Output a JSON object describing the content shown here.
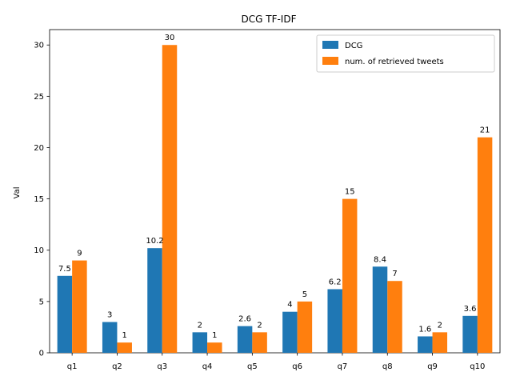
{
  "chart_data": {
    "type": "bar",
    "title": "DCG TF-IDF",
    "xlabel": "",
    "ylabel": "Val",
    "categories": [
      "q1",
      "q2",
      "q3",
      "q4",
      "q5",
      "q6",
      "q7",
      "q8",
      "q9",
      "q10"
    ],
    "series": [
      {
        "name": "DCG",
        "color": "#1f77b4",
        "values": [
          7.5,
          3,
          10.2,
          2,
          2.6,
          4,
          6.2,
          8.4,
          1.6,
          3.6
        ],
        "labels": [
          "7.5",
          "3",
          "10.2",
          "2",
          "2.6",
          "4",
          "6.2",
          "8.4",
          "1.6",
          "3.6"
        ]
      },
      {
        "name": "num. of retrieved tweets",
        "color": "#ff7f0e",
        "values": [
          9,
          1,
          30,
          1,
          2,
          5,
          15,
          7,
          2,
          21
        ],
        "labels": [
          "9",
          "1",
          "30",
          "1",
          "2",
          "5",
          "15",
          "7",
          "2",
          "21"
        ]
      }
    ],
    "ylim": [
      0,
      31.5
    ],
    "yticks": [
      0,
      5,
      10,
      15,
      20,
      25,
      30
    ],
    "ytick_labels": [
      "0",
      "5",
      "10",
      "15",
      "20",
      "25",
      "30"
    ],
    "grid": false,
    "legend_position": "top-right"
  }
}
